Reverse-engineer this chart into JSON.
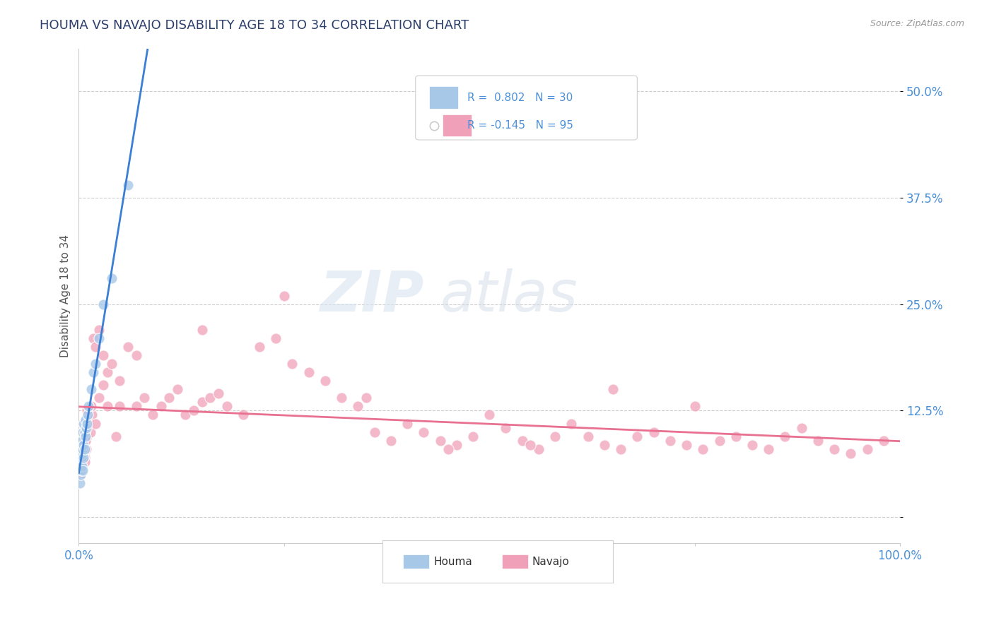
{
  "title": "HOUMA VS NAVAJO DISABILITY AGE 18 TO 34 CORRELATION CHART",
  "source_text": "Source: ZipAtlas.com",
  "ylabel": "Disability Age 18 to 34",
  "watermark_zip": "ZIP",
  "watermark_atlas": "atlas",
  "houma_R": 0.802,
  "houma_N": 30,
  "navajo_R": -0.145,
  "navajo_N": 95,
  "houma_color": "#a8c8e8",
  "navajo_color": "#f0a0b8",
  "houma_line_color": "#3a7fd4",
  "navajo_line_color": "#e87090",
  "background_color": "#ffffff",
  "grid_color": "#c8c8c8",
  "title_color": "#2c3e6b",
  "axis_label_color": "#4a90d9",
  "xlim": [
    0.0,
    1.0
  ],
  "ylim": [
    -0.03,
    0.55
  ],
  "houma_x": [
    0.001,
    0.002,
    0.002,
    0.003,
    0.003,
    0.003,
    0.004,
    0.004,
    0.004,
    0.005,
    0.005,
    0.005,
    0.006,
    0.006,
    0.006,
    0.007,
    0.007,
    0.008,
    0.008,
    0.009,
    0.01,
    0.011,
    0.012,
    0.015,
    0.018,
    0.02,
    0.025,
    0.03,
    0.04,
    0.06
  ],
  "houma_y": [
    0.04,
    0.05,
    0.06,
    0.055,
    0.07,
    0.08,
    0.06,
    0.075,
    0.09,
    0.055,
    0.08,
    0.1,
    0.07,
    0.085,
    0.11,
    0.08,
    0.1,
    0.095,
    0.115,
    0.105,
    0.11,
    0.12,
    0.13,
    0.15,
    0.17,
    0.18,
    0.21,
    0.25,
    0.28,
    0.39
  ],
  "navajo_x": [
    0.001,
    0.002,
    0.003,
    0.004,
    0.005,
    0.006,
    0.007,
    0.008,
    0.009,
    0.01,
    0.012,
    0.014,
    0.016,
    0.018,
    0.02,
    0.025,
    0.03,
    0.035,
    0.04,
    0.05,
    0.06,
    0.07,
    0.08,
    0.09,
    0.1,
    0.11,
    0.12,
    0.13,
    0.14,
    0.15,
    0.16,
    0.17,
    0.18,
    0.2,
    0.22,
    0.24,
    0.26,
    0.28,
    0.3,
    0.32,
    0.34,
    0.36,
    0.38,
    0.4,
    0.42,
    0.44,
    0.46,
    0.48,
    0.5,
    0.52,
    0.54,
    0.56,
    0.58,
    0.6,
    0.62,
    0.64,
    0.66,
    0.68,
    0.7,
    0.72,
    0.74,
    0.76,
    0.78,
    0.8,
    0.82,
    0.84,
    0.86,
    0.88,
    0.9,
    0.92,
    0.94,
    0.96,
    0.98,
    0.15,
    0.25,
    0.35,
    0.45,
    0.55,
    0.65,
    0.75,
    0.07,
    0.03,
    0.02,
    0.015,
    0.025,
    0.035,
    0.045,
    0.008,
    0.006,
    0.004,
    0.003,
    0.002,
    0.007,
    0.01,
    0.05
  ],
  "navajo_y": [
    0.07,
    0.06,
    0.08,
    0.065,
    0.075,
    0.085,
    0.07,
    0.09,
    0.08,
    0.095,
    0.11,
    0.1,
    0.12,
    0.21,
    0.2,
    0.22,
    0.19,
    0.17,
    0.18,
    0.16,
    0.2,
    0.13,
    0.14,
    0.12,
    0.13,
    0.14,
    0.15,
    0.12,
    0.125,
    0.135,
    0.14,
    0.145,
    0.13,
    0.12,
    0.2,
    0.21,
    0.18,
    0.17,
    0.16,
    0.14,
    0.13,
    0.1,
    0.09,
    0.11,
    0.1,
    0.09,
    0.085,
    0.095,
    0.12,
    0.105,
    0.09,
    0.08,
    0.095,
    0.11,
    0.095,
    0.085,
    0.08,
    0.095,
    0.1,
    0.09,
    0.085,
    0.08,
    0.09,
    0.095,
    0.085,
    0.08,
    0.095,
    0.105,
    0.09,
    0.08,
    0.075,
    0.08,
    0.09,
    0.22,
    0.26,
    0.14,
    0.08,
    0.085,
    0.15,
    0.13,
    0.19,
    0.155,
    0.11,
    0.13,
    0.14,
    0.13,
    0.095,
    0.09,
    0.07,
    0.055,
    0.06,
    0.05,
    0.065,
    0.125,
    0.13
  ]
}
